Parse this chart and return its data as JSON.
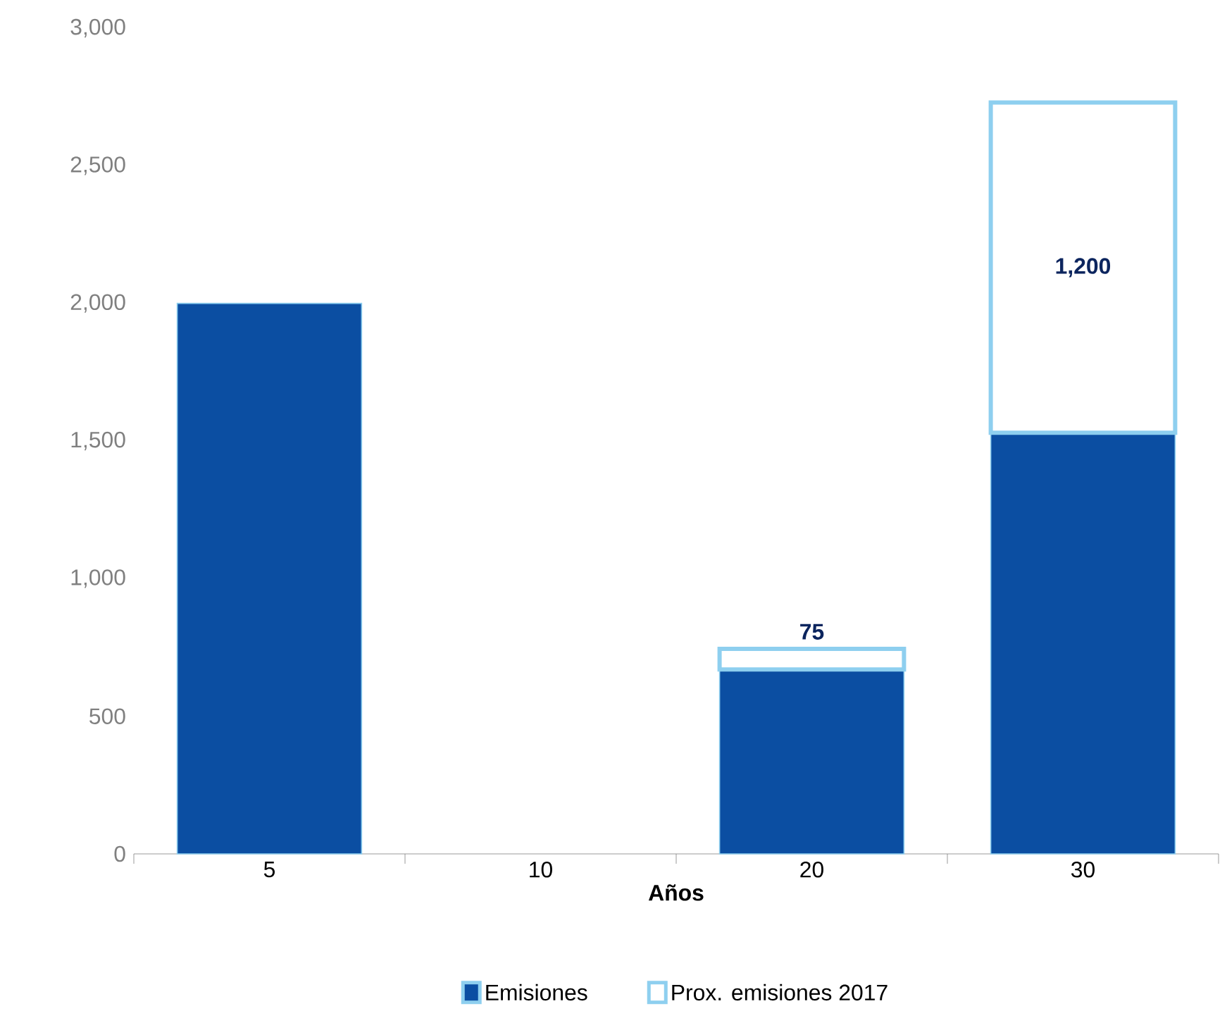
{
  "chart_data": {
    "type": "bar",
    "stacked": true,
    "xlabel": "Años",
    "categories": [
      "5",
      "10",
      "20",
      "30"
    ],
    "series": [
      {
        "name": "Emisiones",
        "color": "#0b4ea2",
        "values": [
          2000,
          null,
          670,
          1530
        ]
      },
      {
        "name": "Prox. emisiones 2017",
        "color": "#8ecfef",
        "values": [
          null,
          null,
          75,
          1200
        ],
        "value_labels": [
          null,
          null,
          "75",
          "1,200"
        ]
      }
    ],
    "ylim": [
      0,
      3000
    ],
    "yticks": [
      0,
      500,
      {
        "value": 1000,
        "label": "1,000"
      },
      {
        "value": 1500,
        "label": "1,500"
      },
      {
        "value": 2000,
        "label": "2,000"
      },
      {
        "value": 2500,
        "label": "2,500"
      },
      {
        "value": 3000,
        "label": "3,000"
      }
    ],
    "legend": "bottom",
    "grid": false
  }
}
